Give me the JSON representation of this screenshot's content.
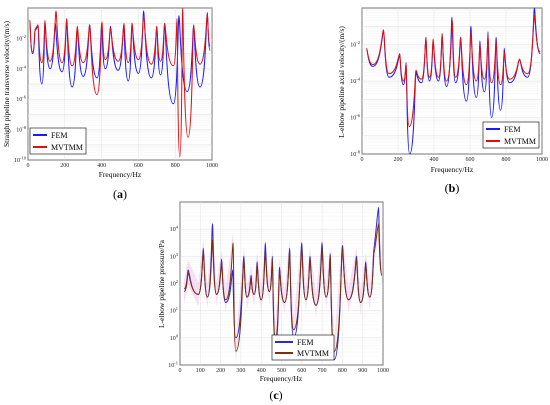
{
  "chart_data": [
    {
      "type": "line",
      "panel_label": {
        "open": "(",
        "letter": "a",
        "close": ")"
      },
      "xlabel": "Frequency/Hz",
      "ylabel": "Straight pipeline transverse velocity/(m/s)",
      "xlim": [
        0,
        1000
      ],
      "x_ticks": [
        "0",
        "200",
        "400",
        "600",
        "800",
        "1000"
      ],
      "y_scale": "log",
      "ylim_exp": [
        -10,
        0
      ],
      "y_ticks": [
        {
          "base": "10",
          "exp": "-10"
        },
        {
          "base": "10",
          "exp": "-8"
        },
        {
          "base": "10",
          "exp": "-6"
        },
        {
          "base": "10",
          "exp": "-4"
        },
        {
          "base": "10",
          "exp": "-2"
        }
      ],
      "grid": true,
      "legend_position": "bottom-left",
      "series": [
        {
          "name": "FEM",
          "color": "#1a1aff",
          "peaks": [
            [
              10,
              -0.8
            ],
            [
              38,
              -1.5
            ],
            [
              55,
              -1.2
            ],
            [
              92,
              -0.9
            ],
            [
              148,
              -1.0
            ],
            [
              210,
              -0.8
            ],
            [
              268,
              -1.3
            ],
            [
              335,
              -1.1
            ],
            [
              400,
              -1.0
            ],
            [
              448,
              -1.2
            ],
            [
              520,
              -1.1
            ],
            [
              565,
              -1.0
            ],
            [
              628,
              -0.2
            ],
            [
              700,
              -1.2
            ],
            [
              742,
              -1.1
            ],
            [
              820,
              -0.5
            ],
            [
              900,
              -1.2
            ],
            [
              975,
              -0.3
            ]
          ],
          "valleys": [
            [
              25,
              -3.0
            ],
            [
              75,
              -5.0
            ],
            [
              120,
              -4.0
            ],
            [
              185,
              -4.2
            ],
            [
              240,
              -5.2
            ],
            [
              300,
              -4.5
            ],
            [
              375,
              -4.6
            ],
            [
              420,
              -4.0
            ],
            [
              490,
              -4.1
            ],
            [
              545,
              -4.8
            ],
            [
              600,
              -4.3
            ],
            [
              670,
              -4.6
            ],
            [
              720,
              -4.4
            ],
            [
              790,
              -6.3
            ],
            [
              865,
              -5.5
            ],
            [
              935,
              -5.2
            ],
            [
              990,
              -2.8
            ]
          ]
        },
        {
          "name": "MVTMM",
          "color": "#e01010",
          "peaks": [
            [
              10,
              -0.8
            ],
            [
              38,
              -1.4
            ],
            [
              55,
              -1.1
            ],
            [
              92,
              -0.8
            ],
            [
              152,
              -0.2
            ],
            [
              210,
              -0.7
            ],
            [
              268,
              -1.2
            ],
            [
              335,
              -1.1
            ],
            [
              402,
              -0.9
            ],
            [
              448,
              -1.3
            ],
            [
              522,
              -1.0
            ],
            [
              565,
              -1.0
            ],
            [
              628,
              -0.5
            ],
            [
              700,
              -1.2
            ],
            [
              742,
              -1.0
            ],
            [
              810,
              -0.7
            ],
            [
              840,
              0.0
            ],
            [
              900,
              -1.1
            ],
            [
              975,
              -0.4
            ]
          ],
          "valleys": [
            [
              25,
              -2.9
            ],
            [
              75,
              -3.6
            ],
            [
              120,
              -3.5
            ],
            [
              185,
              -3.6
            ],
            [
              240,
              -3.8
            ],
            [
              300,
              -3.6
            ],
            [
              375,
              -5.7
            ],
            [
              420,
              -3.4
            ],
            [
              490,
              -3.5
            ],
            [
              545,
              -3.6
            ],
            [
              600,
              -3.4
            ],
            [
              670,
              -3.7
            ],
            [
              720,
              -3.5
            ],
            [
              790,
              -3.8
            ],
            [
              825,
              -9.8
            ],
            [
              870,
              -8.5
            ],
            [
              935,
              -3.7
            ],
            [
              990,
              -2.5
            ]
          ]
        }
      ]
    },
    {
      "type": "line",
      "panel_label": {
        "open": "(",
        "letter": "b",
        "close": ")"
      },
      "xlabel": "Frequency/Hz",
      "ylabel": "L-elbow pipeline axial velocity/(m/s)",
      "xlim": [
        0,
        1000
      ],
      "x_ticks": [
        "0",
        "200",
        "400",
        "600",
        "800",
        "1000"
      ],
      "y_scale": "log",
      "ylim_exp": [
        -8,
        0
      ],
      "y_ticks": [
        {
          "base": "10",
          "exp": "-8"
        },
        {
          "base": "10",
          "exp": "-6"
        },
        {
          "base": "10",
          "exp": "-4"
        },
        {
          "base": "10",
          "exp": "-2"
        }
      ],
      "grid": true,
      "legend_position": "bottom-right",
      "series": [
        {
          "name": "FEM",
          "color": "#1a1aff",
          "peaks": [
            [
              25,
              -2.2
            ],
            [
              120,
              -1.3
            ],
            [
              210,
              -2.6
            ],
            [
              245,
              -3.0
            ],
            [
              300,
              -3.5
            ],
            [
              355,
              -1.6
            ],
            [
              395,
              -1.8
            ],
            [
              445,
              -1.4
            ],
            [
              500,
              -0.5
            ],
            [
              548,
              -1.6
            ],
            [
              605,
              -1.0
            ],
            [
              655,
              -1.8
            ],
            [
              700,
              -1.3
            ],
            [
              745,
              -1.6
            ],
            [
              790,
              -2.2
            ],
            [
              875,
              -2.8
            ],
            [
              958,
              0.0
            ]
          ],
          "valleys": [
            [
              60,
              -3.2
            ],
            [
              150,
              -3.8
            ],
            [
              230,
              -4.2
            ],
            [
              265,
              -8.0
            ],
            [
              330,
              -4.1
            ],
            [
              375,
              -4.0
            ],
            [
              425,
              -4.0
            ],
            [
              470,
              -4.3
            ],
            [
              520,
              -4.1
            ],
            [
              580,
              -5.1
            ],
            [
              635,
              -4.9
            ],
            [
              680,
              -4.6
            ],
            [
              720,
              -6.0
            ],
            [
              770,
              -5.6
            ],
            [
              820,
              -4.1
            ],
            [
              920,
              -3.8
            ],
            [
              990,
              -2.5
            ]
          ]
        },
        {
          "name": "MVTMM",
          "color": "#e01010",
          "peaks": [
            [
              25,
              -2.2
            ],
            [
              120,
              -1.2
            ],
            [
              210,
              -2.5
            ],
            [
              245,
              -3.0
            ],
            [
              300,
              -3.4
            ],
            [
              355,
              -1.6
            ],
            [
              395,
              -1.7
            ],
            [
              445,
              -1.4
            ],
            [
              502,
              -0.7
            ],
            [
              548,
              -1.6
            ],
            [
              605,
              -1.3
            ],
            [
              655,
              -2.0
            ],
            [
              700,
              -1.5
            ],
            [
              745,
              -1.8
            ],
            [
              790,
              -2.4
            ],
            [
              875,
              -2.8
            ],
            [
              958,
              -0.4
            ]
          ],
          "valleys": [
            [
              60,
              -3.1
            ],
            [
              150,
              -3.6
            ],
            [
              230,
              -4.0
            ],
            [
              262,
              -6.5
            ],
            [
              330,
              -3.9
            ],
            [
              375,
              -3.8
            ],
            [
              425,
              -3.8
            ],
            [
              470,
              -4.0
            ],
            [
              520,
              -3.8
            ],
            [
              580,
              -4.2
            ],
            [
              635,
              -4.0
            ],
            [
              680,
              -3.9
            ],
            [
              720,
              -4.1
            ],
            [
              770,
              -4.2
            ],
            [
              820,
              -3.9
            ],
            [
              920,
              -3.6
            ],
            [
              990,
              -2.4
            ]
          ]
        }
      ]
    },
    {
      "type": "line",
      "panel_label": {
        "open": "(",
        "letter": "c",
        "close": ")"
      },
      "xlabel": "Frequency/Hz",
      "ylabel": "L-elbow pipeline pressure/Pa",
      "xlim": [
        0,
        1000
      ],
      "x_ticks": [
        "0",
        "100",
        "200",
        "300",
        "400",
        "500",
        "600",
        "700",
        "800",
        "900",
        "1000"
      ],
      "y_scale": "log",
      "ylim_exp": [
        -1,
        5
      ],
      "y_ticks": [
        {
          "base": "10",
          "exp": "-1"
        },
        {
          "base": "10",
          "exp": "0"
        },
        {
          "base": "10",
          "exp": "1"
        },
        {
          "base": "10",
          "exp": "2"
        },
        {
          "base": "10",
          "exp": "3"
        },
        {
          "base": "10",
          "exp": "4"
        }
      ],
      "grid": true,
      "legend_position": "bottom-center",
      "series": [
        {
          "name": "FEM",
          "color": "#2a2ad0",
          "peaks": [
            [
              40,
              2.5
            ],
            [
              115,
              3.3
            ],
            [
              160,
              4.2
            ],
            [
              205,
              2.9
            ],
            [
              260,
              2.5
            ],
            [
              315,
              3.0
            ],
            [
              350,
              2.3
            ],
            [
              380,
              2.8
            ],
            [
              420,
              3.5
            ],
            [
              455,
              3.0
            ],
            [
              490,
              2.6
            ],
            [
              540,
              3.3
            ],
            [
              600,
              3.5
            ],
            [
              640,
              3.0
            ],
            [
              700,
              3.5
            ],
            [
              740,
              3.1
            ],
            [
              800,
              3.4
            ],
            [
              870,
              3.0
            ],
            [
              915,
              2.8
            ],
            [
              955,
              3.3
            ],
            [
              978,
              4.8
            ]
          ],
          "valleys": [
            [
              20,
              1.8
            ],
            [
              90,
              1.6
            ],
            [
              135,
              1.5
            ],
            [
              180,
              1.6
            ],
            [
              225,
              1.3
            ],
            [
              275,
              0.0
            ],
            [
              330,
              1.5
            ],
            [
              365,
              1.6
            ],
            [
              400,
              1.4
            ],
            [
              440,
              1.7
            ],
            [
              470,
              -0.3
            ],
            [
              515,
              1.3
            ],
            [
              560,
              0.0
            ],
            [
              620,
              1.4
            ],
            [
              670,
              1.2
            ],
            [
              720,
              1.5
            ],
            [
              760,
              -0.8
            ],
            [
              830,
              1.4
            ],
            [
              890,
              1.3
            ],
            [
              935,
              1.5
            ],
            [
              995,
              2.3
            ]
          ]
        },
        {
          "name": "MVTMM",
          "color": "#7a3010",
          "peaks": [
            [
              40,
              2.4
            ],
            [
              115,
              3.2
            ],
            [
              160,
              3.6
            ],
            [
              205,
              2.8
            ],
            [
              262,
              3.5
            ],
            [
              315,
              2.9
            ],
            [
              350,
              2.2
            ],
            [
              380,
              2.7
            ],
            [
              420,
              3.2
            ],
            [
              455,
              2.9
            ],
            [
              490,
              2.5
            ],
            [
              540,
              3.2
            ],
            [
              600,
              3.3
            ],
            [
              640,
              2.9
            ],
            [
              700,
              3.3
            ],
            [
              740,
              3.0
            ],
            [
              800,
              3.3
            ],
            [
              870,
              2.9
            ],
            [
              915,
              2.7
            ],
            [
              955,
              3.1
            ],
            [
              978,
              4.2
            ]
          ],
          "valleys": [
            [
              20,
              1.7
            ],
            [
              90,
              1.6
            ],
            [
              135,
              1.5
            ],
            [
              180,
              1.6
            ],
            [
              225,
              1.4
            ],
            [
              275,
              -0.5
            ],
            [
              330,
              1.5
            ],
            [
              365,
              1.6
            ],
            [
              400,
              1.4
            ],
            [
              440,
              1.7
            ],
            [
              470,
              0.0
            ],
            [
              515,
              1.3
            ],
            [
              560,
              0.3
            ],
            [
              620,
              1.4
            ],
            [
              670,
              1.2
            ],
            [
              720,
              1.5
            ],
            [
              760,
              -0.5
            ],
            [
              830,
              1.4
            ],
            [
              890,
              1.3
            ],
            [
              935,
              1.5
            ],
            [
              995,
              2.3
            ]
          ]
        }
      ]
    }
  ]
}
